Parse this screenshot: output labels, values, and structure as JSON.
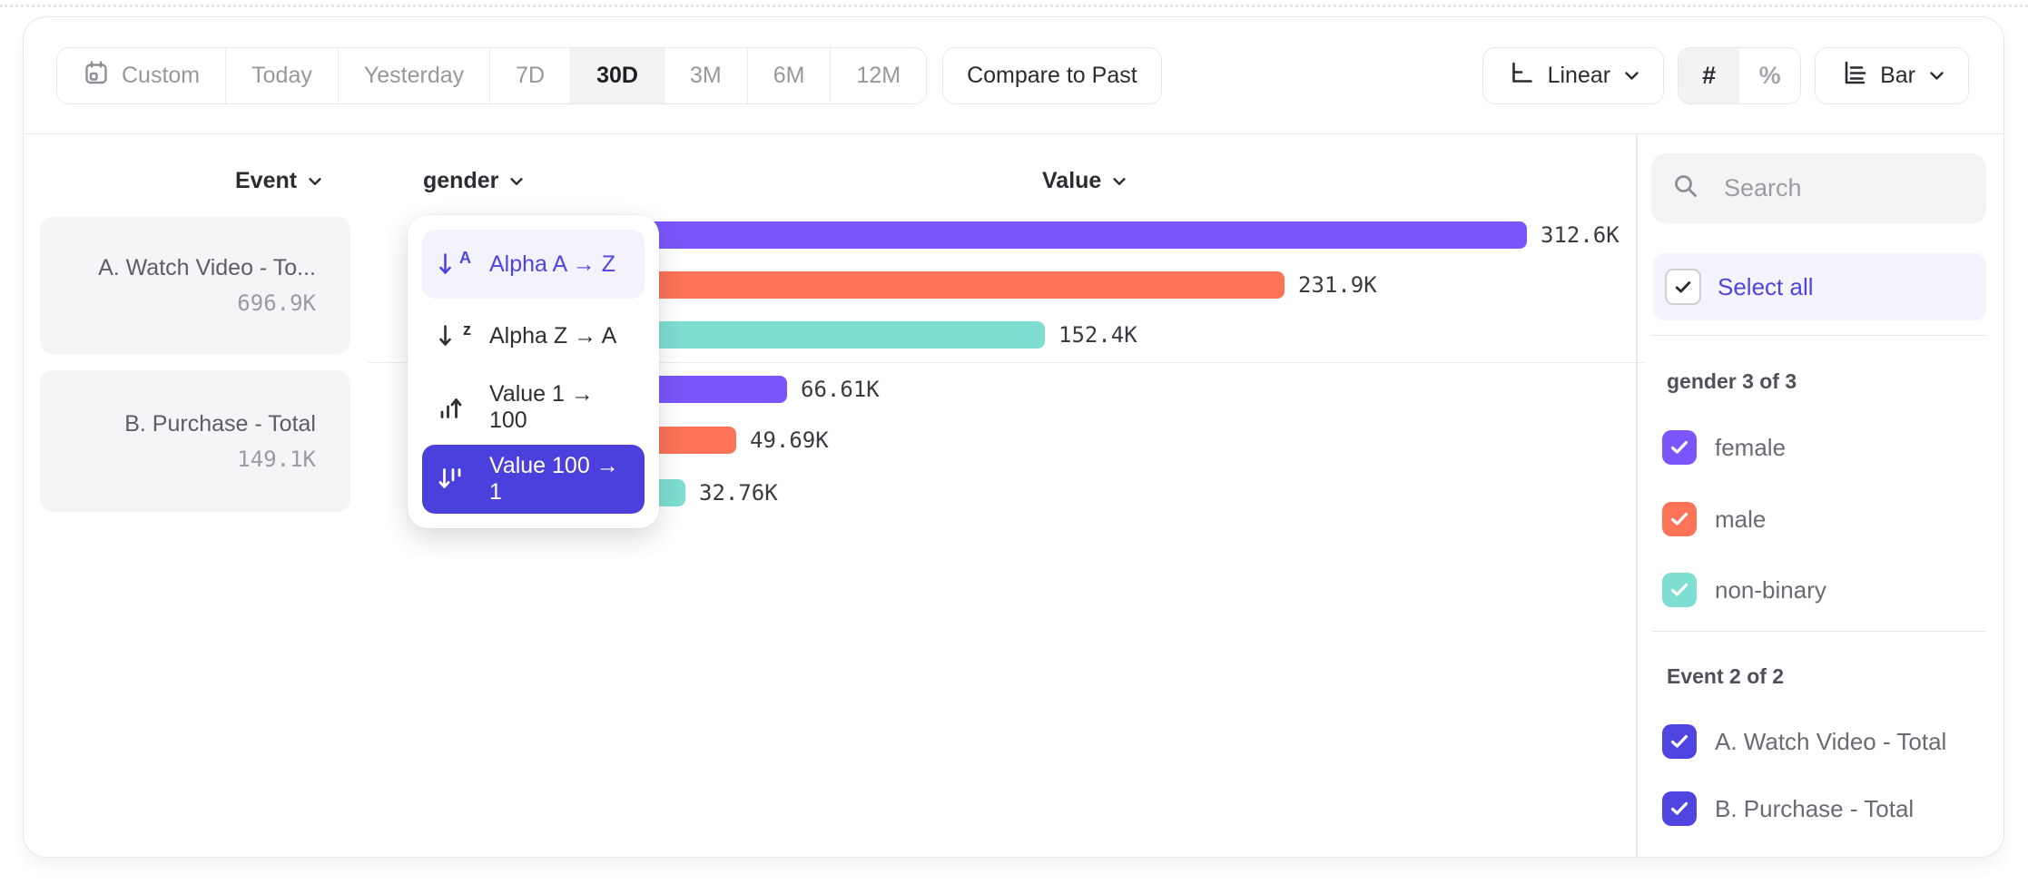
{
  "colors": {
    "accent_indigo": "#4f44e0",
    "selected_menu_bg": "#4c40dd",
    "highlight_lavender": "#f4f3fd",
    "bar_purple": "#7a56fa",
    "bar_orange": "#fd7357",
    "bar_teal": "#7fded2"
  },
  "toolbar": {
    "date_ranges": [
      "Custom",
      "Today",
      "Yesterday",
      "7D",
      "30D",
      "3M",
      "6M",
      "12M"
    ],
    "active_range": "30D",
    "compare_label": "Compare to Past",
    "scale_label": "Linear",
    "count_toggle": [
      "#",
      "%"
    ],
    "active_toggle": "#",
    "chart_type_label": "Bar"
  },
  "columns": {
    "event": "Event",
    "breakdown": "gender",
    "value": "Value"
  },
  "events": [
    {
      "name": "A. Watch Video - To...",
      "value": "696.9K"
    },
    {
      "name": "B. Purchase - Total",
      "value": "149.1K"
    }
  ],
  "sort_menu": {
    "items": [
      {
        "label": "Alpha A → Z",
        "icon": "alpha-asc",
        "state": "highlighted"
      },
      {
        "label": "Alpha Z → A",
        "icon": "alpha-desc",
        "state": ""
      },
      {
        "label": "Value 1 → 100",
        "icon": "value-asc",
        "state": ""
      },
      {
        "label": "Value 100 → 1",
        "icon": "value-desc",
        "state": "selected"
      }
    ]
  },
  "chart_data": {
    "type": "bar",
    "orientation": "horizontal",
    "value_axis_label": "Value",
    "breakdown_property": "gender",
    "sort": "Value 100 → 1",
    "unit_suffix": "K",
    "groups": [
      {
        "event": "A. Watch Video - Total",
        "total_display": "696.9K",
        "bars": [
          {
            "category": "female",
            "value_k": 312.6,
            "display": "312.6K",
            "color": "#7a56fa"
          },
          {
            "category": "male",
            "value_k": 231.9,
            "display": "231.9K",
            "color": "#fd7357"
          },
          {
            "category": "non-binary",
            "value_k": 152.4,
            "display": "152.4K",
            "color": "#7fded2"
          }
        ]
      },
      {
        "event": "B. Purchase - Total",
        "total_display": "149.1K",
        "bars": [
          {
            "category": "female",
            "value_k": 66.61,
            "display": "66.61K",
            "color": "#7a56fa"
          },
          {
            "category": "male",
            "value_k": 49.69,
            "display": "49.69K",
            "color": "#fd7357"
          },
          {
            "category": "non-binary",
            "value_k": 32.76,
            "display": "32.76K",
            "color": "#7fded2"
          }
        ]
      }
    ]
  },
  "sidebar": {
    "search_placeholder": "Search",
    "select_all": "Select all",
    "sections": [
      {
        "title": "gender 3 of 3",
        "items": [
          {
            "label": "female",
            "color": "#7a56fa",
            "checked": true
          },
          {
            "label": "male",
            "color": "#fd7357",
            "checked": true
          },
          {
            "label": "non-binary",
            "color": "#7fded2",
            "checked": true
          }
        ]
      },
      {
        "title": "Event 2 of 2",
        "items": [
          {
            "label": "A. Watch Video - Total",
            "color": "#4f44e0",
            "checked": true
          },
          {
            "label": "B. Purchase - Total",
            "color": "#4f44e0",
            "checked": true
          }
        ]
      }
    ]
  }
}
